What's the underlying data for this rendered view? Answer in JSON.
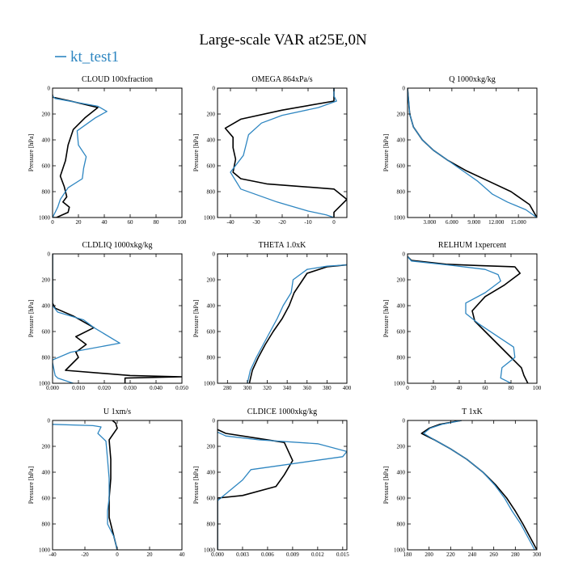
{
  "figure": {
    "title": "Large-scale VAR at25E,0N",
    "legend": [
      {
        "label": "kt_test1",
        "color": "#2e86c1"
      }
    ],
    "reference_color": "#000000"
  },
  "chart_data": [
    {
      "type": "line",
      "title": "CLOUD  100xfraction",
      "ylabel": "Pressure [hPa]",
      "xlim": [
        0,
        100
      ],
      "ylim": [
        1000,
        0
      ],
      "xticks": [
        0,
        20,
        40,
        60,
        80,
        100
      ],
      "xtick_labels": [
        "0",
        "20",
        "40",
        "60",
        "80",
        "100"
      ],
      "yticks": [
        0,
        200,
        400,
        600,
        800,
        1000
      ],
      "ytick_labels": [
        "0",
        "200",
        "400",
        "600",
        "800",
        "1000"
      ],
      "series": [
        {
          "name": "reference",
          "color": "#000000",
          "x": [
            0,
            0,
            14,
            35,
            25,
            16,
            12,
            10,
            6,
            9,
            11,
            8,
            13,
            12,
            3,
            0
          ],
          "y": [
            50,
            70,
            100,
            150,
            230,
            320,
            440,
            560,
            680,
            760,
            840,
            880,
            920,
            960,
            1000,
            1000
          ]
        },
        {
          "name": "kt_test1",
          "color": "#2e86c1",
          "x": [
            0,
            2,
            35,
            42,
            33,
            19,
            20,
            26,
            24,
            23,
            12,
            6,
            4,
            1,
            0
          ],
          "y": [
            60,
            80,
            140,
            180,
            230,
            330,
            440,
            530,
            620,
            700,
            770,
            860,
            920,
            980,
            1000
          ]
        }
      ]
    },
    {
      "type": "line",
      "title": "OMEGA  864xPa/s",
      "ylabel": "Pressure [hPa]",
      "xlim": [
        -45,
        5
      ],
      "ylim": [
        1000,
        0
      ],
      "xticks": [
        -40,
        -30,
        -20,
        -10,
        0
      ],
      "xtick_labels": [
        "-40",
        "-30",
        "-20",
        "-10",
        "0"
      ],
      "yticks": [
        0,
        200,
        400,
        600,
        800,
        1000
      ],
      "ytick_labels": [
        "0",
        "200",
        "400",
        "600",
        "800",
        "1000"
      ],
      "series": [
        {
          "name": "reference",
          "color": "#000000",
          "x": [
            0,
            0,
            -20,
            -36,
            -42,
            -39,
            -39,
            -38,
            -39,
            -36,
            -26,
            0,
            5,
            0,
            0
          ],
          "y": [
            0,
            100,
            170,
            240,
            310,
            380,
            460,
            550,
            650,
            700,
            740,
            780,
            860,
            960,
            1000
          ]
        },
        {
          "name": "kt_test1",
          "color": "#2e86c1",
          "x": [
            0,
            0,
            1,
            -6,
            -20,
            -28,
            -33,
            -35,
            -40,
            -36,
            -22,
            -10,
            -3,
            0
          ],
          "y": [
            0,
            60,
            100,
            150,
            210,
            270,
            360,
            520,
            650,
            780,
            880,
            950,
            980,
            1000
          ]
        }
      ]
    },
    {
      "type": "line",
      "title": "Q  1000xkg/kg",
      "ylabel": "Pressure [hPa]",
      "xlim": [
        0,
        17500
      ],
      "ylim": [
        1000,
        0
      ],
      "xticks": [
        3000,
        6000,
        9000,
        12000,
        15000
      ],
      "xtick_labels": [
        "3.000",
        "6.000",
        "9.000",
        "12.000",
        "15.000"
      ],
      "yticks": [
        0,
        200,
        400,
        600,
        800,
        1000
      ],
      "ytick_labels": [
        "0",
        "200",
        "400",
        "600",
        "800",
        "1000"
      ],
      "series": [
        {
          "name": "reference",
          "color": "#000000",
          "x": [
            0,
            300,
            800,
            2000,
            3500,
            5500,
            8000,
            11000,
            14000,
            16500,
            17500
          ],
          "y": [
            0,
            200,
            300,
            400,
            480,
            560,
            640,
            720,
            800,
            900,
            1000
          ]
        },
        {
          "name": "kt_test1",
          "color": "#2e86c1",
          "x": [
            0,
            300,
            800,
            2000,
            3500,
            5500,
            7500,
            9500,
            11500,
            13500,
            16000,
            17500
          ],
          "y": [
            0,
            200,
            300,
            400,
            480,
            560,
            640,
            720,
            820,
            880,
            940,
            1000
          ]
        }
      ]
    },
    {
      "type": "line",
      "title": "CLDLIQ  1000xkg/kg",
      "ylabel": "Pressure [hPa]",
      "xlim": [
        0,
        0.05
      ],
      "ylim": [
        1000,
        0
      ],
      "xticks": [
        0,
        0.01,
        0.02,
        0.03,
        0.04,
        0.05
      ],
      "xtick_labels": [
        "0.000",
        "0.010",
        "0.020",
        "0.030",
        "0.040",
        "0.050"
      ],
      "yticks": [
        0,
        200,
        400,
        600,
        800,
        1000
      ],
      "ytick_labels": [
        "0",
        "200",
        "400",
        "600",
        "800",
        "1000"
      ],
      "series": [
        {
          "name": "reference",
          "color": "#000000",
          "x": [
            0,
            0,
            0.001,
            0.008,
            0.016,
            0.009,
            0.013,
            0.009,
            0.01,
            0.005,
            0.03,
            0.05,
            0.028,
            0.028
          ],
          "y": [
            0,
            380,
            420,
            480,
            570,
            640,
            700,
            760,
            800,
            900,
            940,
            950,
            960,
            1000
          ]
        },
        {
          "name": "kt_test1",
          "color": "#2e86c1",
          "x": [
            0,
            0,
            0.002,
            0.012,
            0.016,
            0.026,
            0.007,
            0,
            0,
            0.001,
            0.002,
            0.008
          ],
          "y": [
            0,
            400,
            450,
            510,
            570,
            690,
            760,
            820,
            840,
            940,
            960,
            1000
          ]
        }
      ]
    },
    {
      "type": "line",
      "title": "THETA  1.0xK",
      "ylabel": "Pressure [hPa]",
      "xlim": [
        270,
        400
      ],
      "ylim": [
        1000,
        0
      ],
      "xticks": [
        280,
        300,
        320,
        340,
        360,
        380,
        400
      ],
      "xtick_labels": [
        "280",
        "300",
        "320",
        "340",
        "360",
        "380",
        "400"
      ],
      "yticks": [
        0,
        200,
        400,
        600,
        800,
        1000
      ],
      "ytick_labels": [
        "0",
        "200",
        "400",
        "600",
        "800",
        "1000"
      ],
      "series": [
        {
          "name": "reference",
          "color": "#000000",
          "x": [
            302,
            305,
            311,
            318,
            326,
            335,
            342,
            347,
            360,
            380,
            400
          ],
          "y": [
            1000,
            900,
            800,
            700,
            600,
            500,
            400,
            300,
            150,
            100,
            85
          ]
        },
        {
          "name": "kt_test1",
          "color": "#2e86c1",
          "x": [
            300,
            303,
            309,
            316,
            323,
            330,
            336,
            344,
            346,
            360,
            380,
            400
          ],
          "y": [
            1000,
            900,
            800,
            700,
            600,
            500,
            400,
            300,
            200,
            120,
            95,
            85
          ]
        }
      ]
    },
    {
      "type": "line",
      "title": "RELHUM  1xpercent",
      "ylabel": "Pressure [hPa]",
      "xlim": [
        0,
        100
      ],
      "ylim": [
        1000,
        0
      ],
      "xticks": [
        0,
        20,
        40,
        60,
        80,
        100
      ],
      "xtick_labels": [
        "0",
        "20",
        "40",
        "60",
        "80",
        "100"
      ],
      "yticks": [
        0,
        200,
        400,
        600,
        800,
        1000
      ],
      "ytick_labels": [
        "0",
        "200",
        "400",
        "600",
        "800",
        "1000"
      ],
      "series": [
        {
          "name": "reference",
          "color": "#000000",
          "x": [
            0,
            3,
            30,
            55,
            83,
            87,
            75,
            60,
            50,
            52,
            60,
            70,
            80,
            88,
            90,
            93
          ],
          "y": [
            20,
            50,
            80,
            90,
            100,
            150,
            240,
            330,
            440,
            520,
            600,
            700,
            800,
            880,
            940,
            1000
          ]
        },
        {
          "name": "kt_test1",
          "color": "#2e86c1",
          "x": [
            0,
            3,
            35,
            60,
            70,
            72,
            60,
            45,
            45,
            55,
            70,
            82,
            83,
            73,
            72,
            80
          ],
          "y": [
            20,
            55,
            90,
            120,
            160,
            210,
            300,
            380,
            460,
            540,
            640,
            720,
            800,
            880,
            960,
            1000
          ]
        }
      ]
    },
    {
      "type": "line",
      "title": "U  1xm/s",
      "ylabel": "Pressure [hPa]",
      "xlim": [
        -40,
        40
      ],
      "ylim": [
        1000,
        0
      ],
      "xticks": [
        -40,
        -20,
        0,
        20,
        40
      ],
      "xtick_labels": [
        "-40",
        "-20",
        "0",
        "20",
        "40"
      ],
      "yticks": [
        0,
        200,
        400,
        600,
        800,
        1000
      ],
      "ytick_labels": [
        "0",
        "200",
        "400",
        "600",
        "800",
        "1000"
      ],
      "series": [
        {
          "name": "reference",
          "color": "#000000",
          "x": [
            -3,
            -1,
            0,
            -5,
            -4,
            -4,
            -5,
            -5,
            -3,
            -1,
            0
          ],
          "y": [
            0,
            20,
            60,
            150,
            300,
            450,
            600,
            750,
            850,
            950,
            1000
          ]
        },
        {
          "name": "kt_test1",
          "color": "#2e86c1",
          "x": [
            -40,
            -15,
            -10,
            -12,
            -7,
            -6,
            -5,
            -5,
            -6,
            -6,
            -2,
            -1,
            0
          ],
          "y": [
            30,
            40,
            50,
            100,
            160,
            300,
            450,
            600,
            700,
            800,
            900,
            950,
            1000
          ]
        }
      ]
    },
    {
      "type": "line",
      "title": "CLDICE  1000xkg/kg",
      "ylabel": "Pressure [hPa]",
      "xlim": [
        0,
        0.0155
      ],
      "ylim": [
        1000,
        0
      ],
      "xticks": [
        0,
        0.003,
        0.006,
        0.009,
        0.012,
        0.015
      ],
      "xtick_labels": [
        "0.000",
        "0.003",
        "0.006",
        "0.009",
        "0.012",
        "0.015"
      ],
      "yticks": [
        0,
        200,
        400,
        600,
        800,
        1000
      ],
      "ytick_labels": [
        "0",
        "200",
        "400",
        "600",
        "800",
        "1000"
      ],
      "series": [
        {
          "name": "reference",
          "color": "#000000",
          "x": [
            0,
            0.001,
            0.004,
            0.008,
            0.009,
            0.008,
            0.007,
            0.003,
            0,
            0
          ],
          "y": [
            70,
            100,
            130,
            170,
            310,
            420,
            510,
            580,
            600,
            1000
          ]
        },
        {
          "name": "kt_test1",
          "color": "#2e86c1",
          "x": [
            0,
            0.001,
            0.005,
            0.012,
            0.0155,
            0.015,
            0.004,
            0.003,
            0,
            0
          ],
          "y": [
            90,
            120,
            150,
            180,
            240,
            280,
            380,
            460,
            620,
            1000
          ]
        }
      ]
    },
    {
      "type": "line",
      "title": "T  1xK",
      "ylabel": "Pressure [hPa]",
      "xlim": [
        180,
        300
      ],
      "ylim": [
        1000,
        0
      ],
      "xticks": [
        180,
        200,
        220,
        240,
        260,
        280,
        300
      ],
      "xtick_labels": [
        "180",
        "200",
        "220",
        "240",
        "260",
        "280",
        "300"
      ],
      "yticks": [
        0,
        200,
        400,
        600,
        800,
        1000
      ],
      "ytick_labels": [
        "0",
        "200",
        "400",
        "600",
        "800",
        "1000"
      ],
      "series": [
        {
          "name": "reference",
          "color": "#000000",
          "x": [
            230,
            210,
            200,
            193,
            205,
            220,
            235,
            250,
            262,
            272,
            280,
            287,
            300
          ],
          "y": [
            0,
            30,
            60,
            100,
            150,
            220,
            300,
            400,
            500,
            600,
            700,
            800,
            1000
          ]
        },
        {
          "name": "kt_test1",
          "color": "#2e86c1",
          "x": [
            230,
            212,
            201,
            195,
            205,
            220,
            235,
            250,
            261,
            270,
            277,
            285,
            298
          ],
          "y": [
            0,
            30,
            60,
            100,
            150,
            220,
            300,
            400,
            500,
            600,
            700,
            800,
            1000
          ]
        }
      ]
    }
  ]
}
